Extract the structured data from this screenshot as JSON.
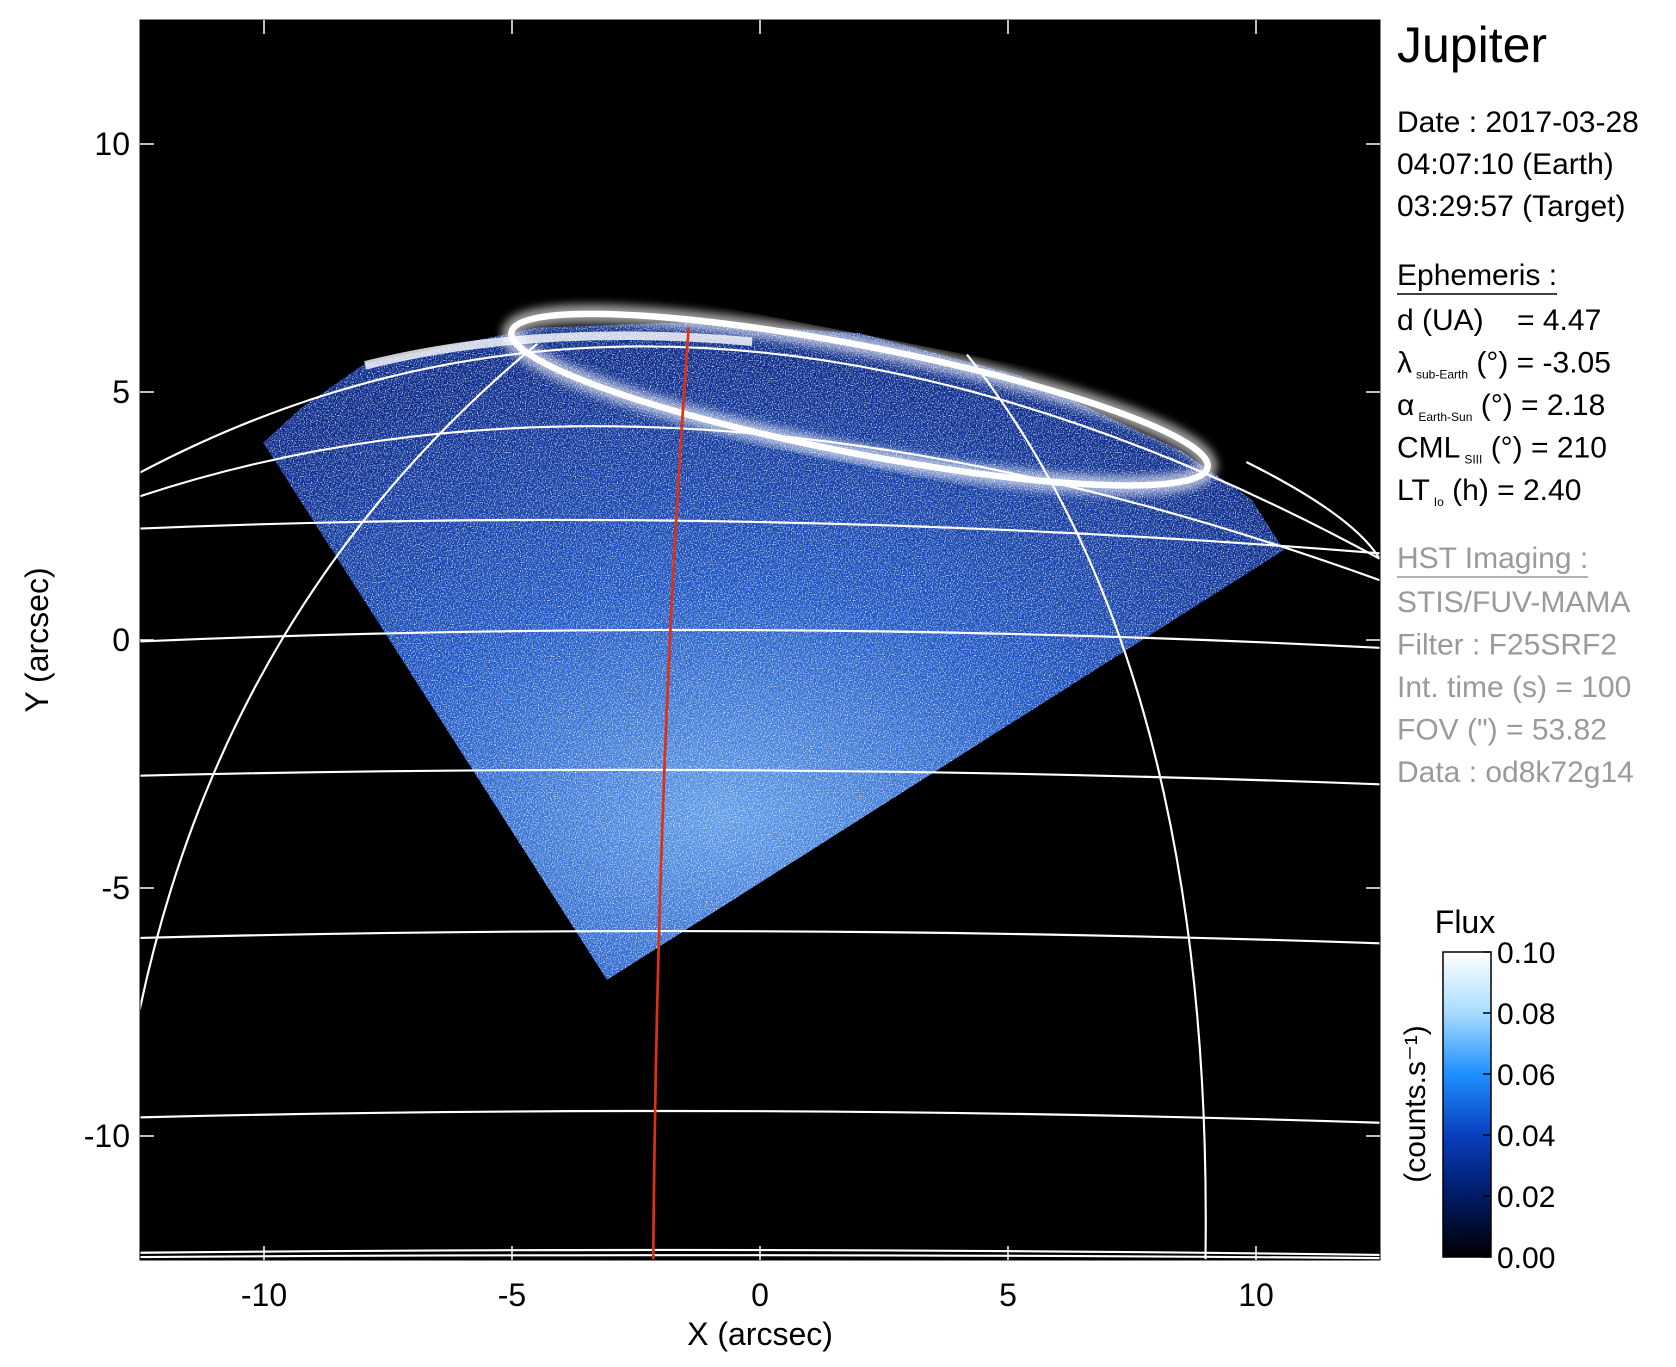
{
  "chart_data": {
    "type": "image",
    "xlabel": "X (arcsec)",
    "ylabel": "Y (arcsec)",
    "xlim": [
      -12.5,
      12.5
    ],
    "ylim": [
      -12.5,
      12.5
    ],
    "xticks": [
      -10,
      -5,
      0,
      5,
      10
    ],
    "yticks": [
      -10,
      -5,
      0,
      5,
      10
    ],
    "colorbar": {
      "title": "Flux",
      "label": "(counts.s⁻¹)",
      "lim": [
        0,
        0.1
      ],
      "ticks": [
        {
          "value": 0,
          "label": "0.00"
        },
        {
          "value": 0.02,
          "label": "0.02"
        },
        {
          "value": 0.04,
          "label": "0.04"
        },
        {
          "value": 0.06,
          "label": "0.06"
        },
        {
          "value": 0.08,
          "label": "0.08"
        },
        {
          "value": 0.1,
          "label": "0.10"
        }
      ],
      "colors": [
        "#000000",
        "#001a66",
        "#0a3fbf",
        "#1e8fff",
        "#a8dcff",
        "#ffffff"
      ]
    }
  },
  "info": {
    "title": "Jupiter",
    "date": [
      "Date : 2017-03-28",
      "04:07:10 (Earth)",
      "03:29:57 (Target)"
    ],
    "ephemeris": {
      "heading": "Ephemeris :",
      "lines": [
        [
          {
            "text": "d (UA)    = 4.47"
          }
        ],
        [
          {
            "text": "λ"
          },
          {
            "sub": "sub-Earth"
          },
          {
            "text": " (°) = -3.05"
          }
        ],
        [
          {
            "text": "α"
          },
          {
            "sub": "Earth-Sun"
          },
          {
            "text": " (°) = 2.18"
          }
        ],
        [
          {
            "text": "CML"
          },
          {
            "sub": "SIII"
          },
          {
            "text": " (°) = 210"
          }
        ],
        [
          {
            "text": "LT"
          },
          {
            "sub": "Io"
          },
          {
            "text": " (h) = 2.40"
          }
        ]
      ]
    },
    "imaging": {
      "heading": "HST Imaging :",
      "lines": [
        "STIS/FUV-MAMA",
        "Filter : F25SRF2",
        "Int. time (s) = 100",
        "FOV (\") = 53.82",
        "Data : od8k72g14"
      ]
    }
  }
}
